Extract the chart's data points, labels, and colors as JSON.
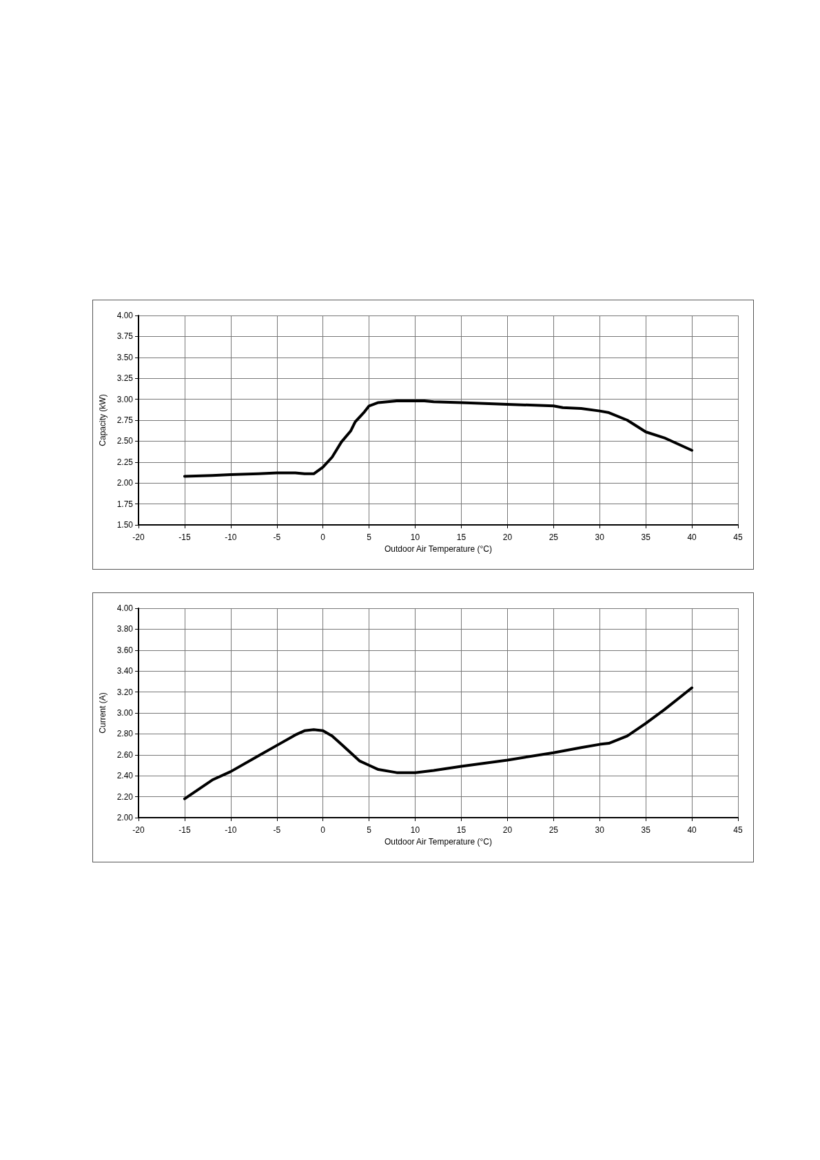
{
  "chart_data": [
    {
      "type": "line",
      "xlabel": "Outdoor Air Temperature (°C)",
      "ylabel": "Capacity (kW)",
      "grid": true,
      "marker": "none",
      "line_style": "solid",
      "xlim": [
        -20,
        45
      ],
      "xticks": [
        -20,
        -15,
        -10,
        -5,
        0,
        5,
        10,
        15,
        20,
        25,
        30,
        35,
        40,
        45
      ],
      "ylim": [
        1.5,
        4
      ],
      "yticks": [
        {
          "value": 1.5,
          "label": "1.50"
        },
        {
          "value": 1.75,
          "label": "1.75"
        },
        {
          "value": 2,
          "label": "2.00"
        },
        {
          "value": 2.25,
          "label": "2.25"
        },
        {
          "value": 2.5,
          "label": "2.50"
        },
        {
          "value": 2.75,
          "label": "2.75"
        },
        {
          "value": 3,
          "label": "3.00"
        },
        {
          "value": 3.25,
          "label": "3.25"
        },
        {
          "value": 3.5,
          "label": "3.50"
        },
        {
          "value": 3.75,
          "label": "3.75"
        },
        {
          "value": 4,
          "label": "4.00"
        }
      ],
      "series": [
        {
          "color": "#000000",
          "x": [
            -15,
            -12,
            -10,
            -7,
            -5,
            -3,
            -2,
            -1,
            0,
            1,
            2,
            3,
            3.5,
            4.5,
            5,
            6,
            8,
            11,
            12,
            15,
            20,
            25,
            26,
            28,
            30,
            31,
            33,
            34,
            35,
            37,
            40
          ],
          "values": [
            2.08,
            2.09,
            2.1,
            2.11,
            2.12,
            2.12,
            2.11,
            2.11,
            2.19,
            2.31,
            2.49,
            2.62,
            2.73,
            2.85,
            2.92,
            2.96,
            2.98,
            2.98,
            2.97,
            2.96,
            2.94,
            2.92,
            2.9,
            2.89,
            2.86,
            2.84,
            2.75,
            2.68,
            2.61,
            2.54,
            2.39
          ]
        }
      ]
    },
    {
      "type": "line",
      "xlabel": "Outdoor Air Temperature (°C)",
      "ylabel": "Current (A)",
      "grid": true,
      "marker": "none",
      "line_style": "solid",
      "xlim": [
        -20,
        45
      ],
      "xticks": [
        -20,
        -15,
        -10,
        -5,
        0,
        5,
        10,
        15,
        20,
        25,
        30,
        35,
        40,
        45
      ],
      "ylim": [
        2,
        4
      ],
      "yticks": [
        {
          "value": 2,
          "label": "2.00"
        },
        {
          "value": 2.2,
          "label": "2.20"
        },
        {
          "value": 2.4,
          "label": "2.40"
        },
        {
          "value": 2.6,
          "label": "2.60"
        },
        {
          "value": 2.8,
          "label": "2.80"
        },
        {
          "value": 3,
          "label": "3.00"
        },
        {
          "value": 3.2,
          "label": "3.20"
        },
        {
          "value": 3.4,
          "label": "3.40"
        },
        {
          "value": 3.6,
          "label": "3.60"
        },
        {
          "value": 3.8,
          "label": "3.80"
        },
        {
          "value": 4,
          "label": "4.00"
        }
      ],
      "series": [
        {
          "color": "#000000",
          "x": [
            -15,
            -12,
            -10,
            -7,
            -5,
            -3,
            -2,
            -1,
            0,
            1,
            2,
            3,
            4,
            5,
            6,
            8,
            9,
            10,
            12,
            15,
            20,
            25,
            28,
            30,
            31,
            33,
            35,
            37,
            40
          ],
          "values": [
            2.18,
            2.36,
            2.44,
            2.59,
            2.69,
            2.79,
            2.83,
            2.84,
            2.83,
            2.78,
            2.7,
            2.62,
            2.54,
            2.5,
            2.46,
            2.43,
            2.43,
            2.43,
            2.45,
            2.49,
            2.55,
            2.62,
            2.67,
            2.7,
            2.71,
            2.78,
            2.9,
            3.03,
            3.24
          ]
        }
      ]
    }
  ]
}
